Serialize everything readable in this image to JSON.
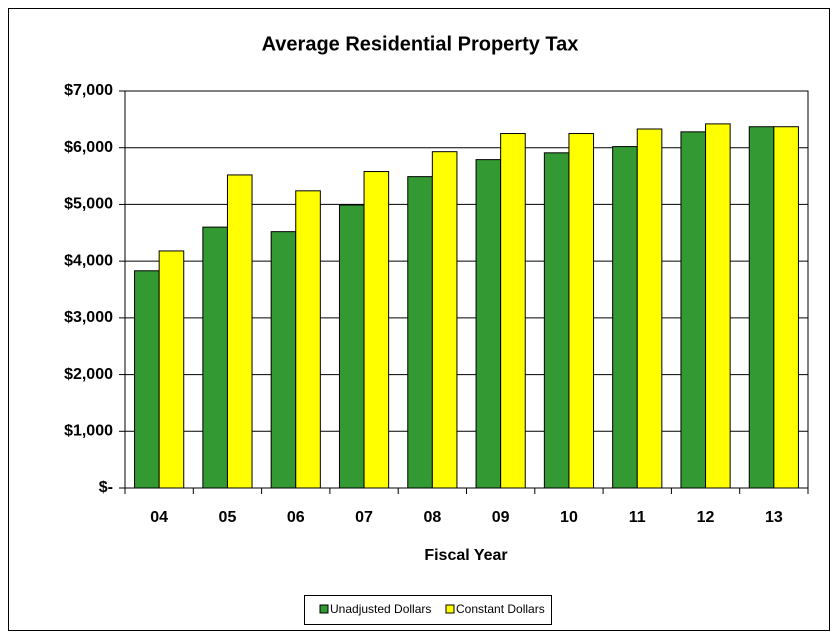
{
  "chart_data": {
    "type": "bar",
    "title": "Average Residential Property Tax",
    "x_label": "Fiscal Year",
    "categories": [
      "04",
      "05",
      "06",
      "07",
      "08",
      "09",
      "10",
      "11",
      "12",
      "13"
    ],
    "series": [
      {
        "name": "Unadjusted Dollars",
        "color": "#339933",
        "values": [
          3830,
          4600,
          4520,
          4990,
          5490,
          5790,
          5910,
          6020,
          6280,
          6370
        ]
      },
      {
        "name": "Constant Dollars",
        "color": "#ffff00",
        "values": [
          4180,
          5520,
          5240,
          5580,
          5930,
          6250,
          6250,
          6330,
          6420,
          6370
        ]
      }
    ],
    "ylim": [
      0,
      7000
    ],
    "yticks": [
      {
        "value": 0,
        "label": "$-"
      },
      {
        "value": 1000,
        "label": "$1,000"
      },
      {
        "value": 2000,
        "label": "$2,000"
      },
      {
        "value": 3000,
        "label": "$3,000"
      },
      {
        "value": 4000,
        "label": "$4,000"
      },
      {
        "value": 5000,
        "label": "$5,000"
      },
      {
        "value": 6000,
        "label": "$6,000"
      },
      {
        "value": 7000,
        "label": "$7,000"
      }
    ],
    "grid": true,
    "legend": "bottom"
  }
}
